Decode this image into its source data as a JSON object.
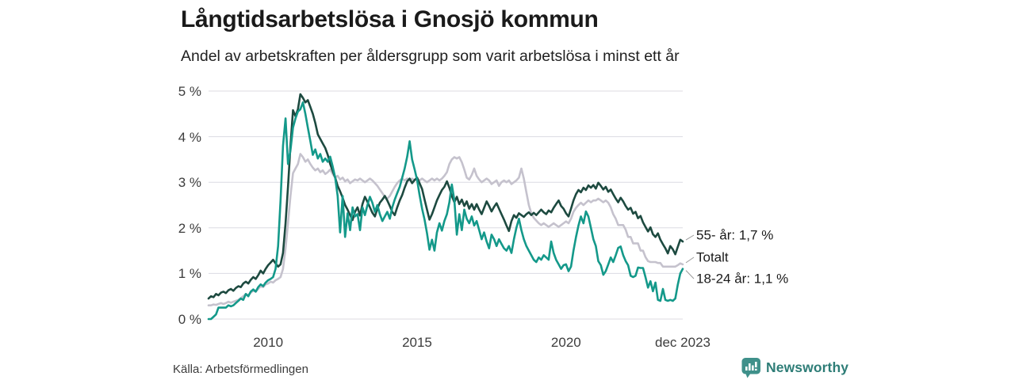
{
  "header": {
    "title": "Långtidsarbetslösa i Gnosjö kommun",
    "subtitle": "Andel av arbetskraften per åldersgrupp som varit arbetslösa i minst ett år"
  },
  "footer": {
    "source": "Källa: Arbetsförmedlingen",
    "brand": "Newsworthy",
    "brand_icon": "bar-chart-speech-bubble-icon",
    "brand_color": "#2e7d77",
    "brand_icon_color": "#3f908a"
  },
  "chart_data": {
    "type": "line",
    "title": "Långtidsarbetslösa i Gnosjö kommun",
    "subtitle": "Andel av arbetskraften per åldersgrupp som varit arbetslösa i minst ett år",
    "xlabel": "",
    "ylabel": "",
    "x_unit": "month",
    "x_start": "jan 2008",
    "x_end": "dec 2023",
    "ylim": [
      0,
      5
    ],
    "grid": true,
    "legend_position": "right-annotations",
    "grid_color": "#dcdbe2",
    "y_ticks": [
      {
        "label": "0 %",
        "value": 0
      },
      {
        "label": "1 %",
        "value": 1
      },
      {
        "label": "2 %",
        "value": 2
      },
      {
        "label": "3 %",
        "value": 3
      },
      {
        "label": "4 %",
        "value": 4
      },
      {
        "label": "5 %",
        "value": 5
      }
    ],
    "x_ticks": [
      {
        "label": "2010",
        "month_index": 24
      },
      {
        "label": "2015",
        "month_index": 84
      },
      {
        "label": "2020",
        "month_index": 144
      },
      {
        "label": "dec 2023",
        "month_index": 191
      }
    ],
    "series": [
      {
        "name": "Totalt",
        "annotation": "Totalt",
        "end_value": 1.2,
        "color": "#c5c2cd",
        "values": [
          0.3,
          0.3,
          0.32,
          0.31,
          0.33,
          0.35,
          0.33,
          0.35,
          0.38,
          0.36,
          0.38,
          0.4,
          0.42,
          0.46,
          0.5,
          0.55,
          0.52,
          0.58,
          0.62,
          0.6,
          0.66,
          0.72,
          0.7,
          0.76,
          0.78,
          0.82,
          0.8,
          0.85,
          0.88,
          0.92,
          1.1,
          1.55,
          2.1,
          2.7,
          3.2,
          3.3,
          3.4,
          3.62,
          3.55,
          3.45,
          3.5,
          3.4,
          3.32,
          3.26,
          3.3,
          3.22,
          3.26,
          3.18,
          3.22,
          3.28,
          3.18,
          3.1,
          3.14,
          3.06,
          3.1,
          3.02,
          3.06,
          2.98,
          3.02,
          3.06,
          3.04,
          3.08,
          3.04,
          3.0,
          3.04,
          3.08,
          3.04,
          2.98,
          2.92,
          2.84,
          2.76,
          2.68,
          2.64,
          2.7,
          2.8,
          2.9,
          2.98,
          3.04,
          3.08,
          3.04,
          3.08,
          3.04,
          3.08,
          3.04,
          3.08,
          3.04,
          3.08,
          3.04,
          3.0,
          3.04,
          3.08,
          3.04,
          3.08,
          3.04,
          3.08,
          3.14,
          3.22,
          3.4,
          3.5,
          3.55,
          3.52,
          3.55,
          3.44,
          3.28,
          3.1,
          3.06,
          3.16,
          3.3,
          3.14,
          3.06,
          3.0,
          3.04,
          3.08,
          3.04,
          2.96,
          3.0,
          3.04,
          2.92,
          3.0,
          3.04,
          3.0,
          3.04,
          2.96,
          3.0,
          3.04,
          3.1,
          3.3,
          3.08,
          2.78,
          2.5,
          2.32,
          2.22,
          2.16,
          2.1,
          2.06,
          2.1,
          2.06,
          2.02,
          2.06,
          2.1,
          2.06,
          2.02,
          2.06,
          2.1,
          2.14,
          2.1,
          2.2,
          2.35,
          2.44,
          2.5,
          2.55,
          2.5,
          2.55,
          2.6,
          2.56,
          2.6,
          2.6,
          2.64,
          2.6,
          2.56,
          2.6,
          2.55,
          2.45,
          2.3,
          2.2,
          2.06,
          2.06,
          2.06,
          1.96,
          1.8,
          1.8,
          1.66,
          1.66,
          1.66,
          1.5,
          1.5,
          1.36,
          1.27,
          1.25,
          1.25,
          1.25,
          1.23,
          1.23,
          1.15,
          1.15,
          1.15,
          1.15,
          1.15,
          1.15,
          1.18,
          1.22,
          1.2
        ]
      },
      {
        "name": "55- år",
        "annotation": "55- år: 1,7 %",
        "end_value": 1.7,
        "color": "#1d4a40",
        "values": [
          0.45,
          0.5,
          0.48,
          0.55,
          0.52,
          0.58,
          0.6,
          0.57,
          0.63,
          0.66,
          0.62,
          0.68,
          0.72,
          0.7,
          0.78,
          0.82,
          0.78,
          0.86,
          0.92,
          0.88,
          0.96,
          1.06,
          1.0,
          1.1,
          1.18,
          1.24,
          1.3,
          1.22,
          1.15,
          1.2,
          1.45,
          2.1,
          2.9,
          3.8,
          4.58,
          4.45,
          4.6,
          4.93,
          4.85,
          4.75,
          4.8,
          4.65,
          4.5,
          4.3,
          4.05,
          3.95,
          3.85,
          3.75,
          3.6,
          3.4,
          3.25,
          3.1,
          2.92,
          2.8,
          2.66,
          2.5,
          2.4,
          2.28,
          2.17,
          2.35,
          2.45,
          2.27,
          2.52,
          2.68,
          2.57,
          2.45,
          2.33,
          2.25,
          2.42,
          2.55,
          2.62,
          2.7,
          2.6,
          2.48,
          2.35,
          2.28,
          2.45,
          2.6,
          2.72,
          2.88,
          3.02,
          3.08,
          2.98,
          3.05,
          3.1,
          2.98,
          2.85,
          2.62,
          2.4,
          2.18,
          2.3,
          2.45,
          2.6,
          2.72,
          2.83,
          2.9,
          3.02,
          2.88,
          2.7,
          2.56,
          2.68,
          2.52,
          2.62,
          2.48,
          2.58,
          2.42,
          2.52,
          2.4,
          2.52,
          2.4,
          2.3,
          2.44,
          2.58,
          2.48,
          2.36,
          2.46,
          2.54,
          2.42,
          2.3,
          2.18,
          2.05,
          1.93,
          2.15,
          2.28,
          2.22,
          2.32,
          2.28,
          2.24,
          2.3,
          2.34,
          2.28,
          2.33,
          2.28,
          2.34,
          2.4,
          2.34,
          2.3,
          2.38,
          2.34,
          2.44,
          2.52,
          2.6,
          2.48,
          2.42,
          2.32,
          2.25,
          2.42,
          2.6,
          2.74,
          2.83,
          2.78,
          2.88,
          2.83,
          2.93,
          2.88,
          2.94,
          2.86,
          2.99,
          2.92,
          2.84,
          2.9,
          2.79,
          2.84,
          2.74,
          2.64,
          2.56,
          2.66,
          2.58,
          2.48,
          2.4,
          2.44,
          2.31,
          2.35,
          2.21,
          2.26,
          2.12,
          2.02,
          1.92,
          2.01,
          1.86,
          1.8,
          1.88,
          1.74,
          1.64,
          1.55,
          1.44,
          1.6,
          1.53,
          1.42,
          1.58,
          1.74,
          1.7
        ]
      },
      {
        "name": "18-24 år",
        "annotation": "18-24 år: 1,1 %",
        "end_value": 1.1,
        "color": "#14998a",
        "values": [
          0.0,
          0.0,
          0.05,
          0.1,
          0.25,
          0.25,
          0.25,
          0.25,
          0.3,
          0.28,
          0.3,
          0.35,
          0.4,
          0.45,
          0.42,
          0.55,
          0.5,
          0.6,
          0.65,
          0.6,
          0.7,
          0.76,
          0.72,
          0.8,
          0.85,
          0.88,
          0.92,
          1.1,
          1.6,
          2.6,
          3.8,
          4.4,
          3.4,
          3.7,
          4.2,
          4.4,
          4.55,
          4.6,
          4.75,
          4.5,
          4.2,
          3.9,
          3.6,
          3.72,
          3.52,
          3.62,
          3.45,
          3.52,
          3.45,
          3.56,
          3.35,
          3.1,
          2.7,
          1.9,
          2.7,
          1.8,
          2.32,
          1.95,
          2.45,
          2.25,
          2.3,
          1.95,
          2.45,
          2.28,
          2.5,
          2.68,
          2.55,
          2.35,
          2.5,
          2.3,
          2.15,
          2.25,
          2.35,
          2.2,
          2.45,
          2.62,
          2.76,
          2.9,
          3.1,
          3.3,
          3.56,
          3.9,
          3.5,
          3.28,
          3.05,
          2.72,
          2.42,
          2.18,
          1.88,
          1.52,
          1.74,
          1.5,
          1.9,
          2.1,
          1.94,
          2.15,
          2.3,
          2.56,
          2.95,
          2.6,
          1.85,
          2.3,
          1.95,
          2.4,
          2.2,
          2.1,
          2.25,
          2.05,
          2.15,
          1.95,
          1.75,
          1.9,
          1.7,
          1.55,
          1.85,
          1.75,
          1.6,
          1.75,
          1.65,
          1.55,
          1.5,
          1.6,
          1.45,
          1.75,
          2.0,
          2.2,
          1.95,
          1.75,
          1.6,
          1.5,
          1.4,
          1.3,
          1.25,
          1.35,
          1.3,
          1.4,
          1.35,
          1.3,
          1.7,
          1.45,
          1.3,
          1.2,
          1.1,
          1.18,
          1.2,
          1.05,
          1.15,
          1.5,
          1.8,
          2.05,
          2.25,
          2.1,
          2.36,
          2.25,
          2.0,
          1.75,
          1.6,
          1.27,
          1.18,
          0.97,
          1.05,
          1.2,
          1.35,
          1.25,
          1.4,
          1.56,
          1.59,
          1.4,
          1.27,
          1.18,
          0.95,
          0.92,
          0.95,
          1.13,
          1.12,
          1.12,
          0.92,
          0.69,
          0.83,
          0.61,
          0.8,
          0.42,
          0.4,
          0.66,
          0.42,
          0.4,
          0.42,
          0.4,
          0.45,
          0.75,
          1.0,
          1.1
        ]
      }
    ]
  }
}
